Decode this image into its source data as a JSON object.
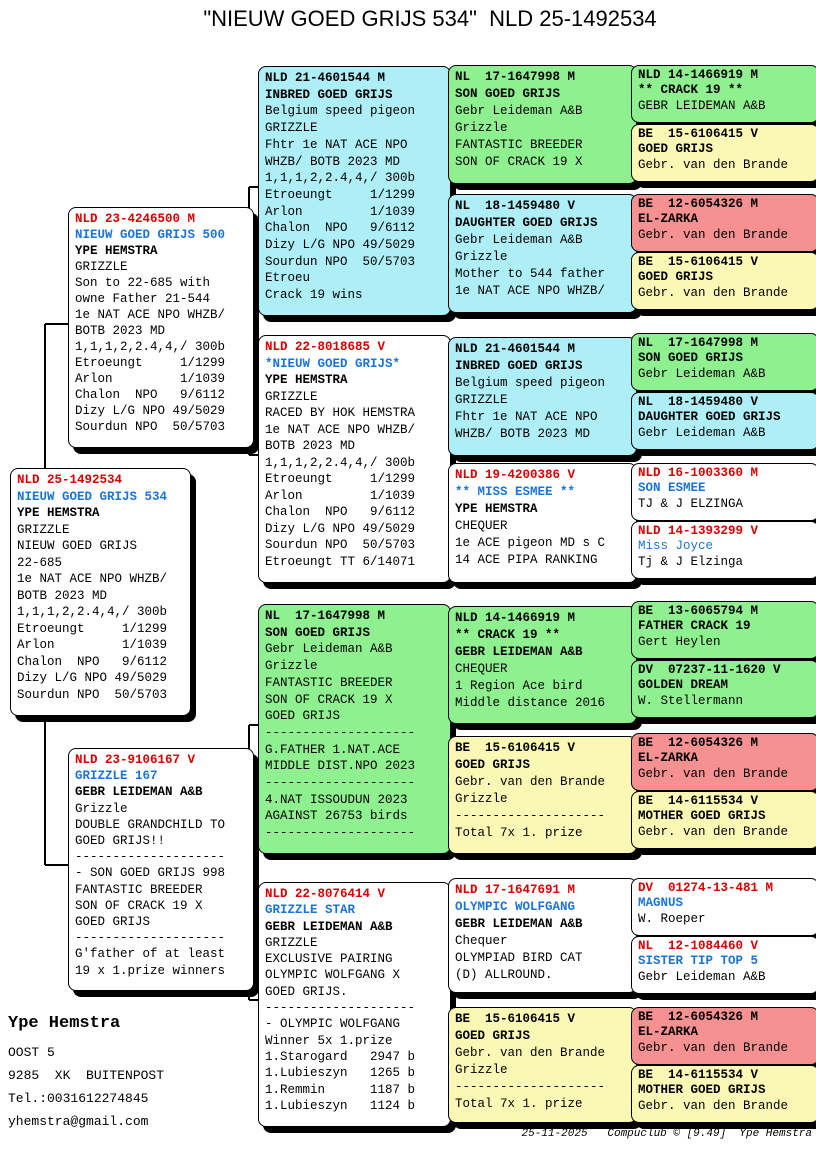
{
  "title": "\"NIEUW GOED GRIJS 534\"  NLD 25-1492534",
  "colors": {
    "text_red": "#d80000",
    "text_blue": "#1b74d8",
    "box_cyan": "#aeeef6",
    "box_green": "#8ff08f",
    "box_yellow": "#fbf8b6",
    "box_red": "#f69191"
  },
  "contact": {
    "name": "Ype Hemstra",
    "address_line1": "OOST 5",
    "address_line2": "9285  XK  BUITENPOST",
    "phone": "Tel.:0031612274845",
    "email": "yhemstra@gmail.com"
  },
  "footer": {
    "text": "25-11-2025   Compuclub © [9.49]  Ype Hemstra"
  },
  "pedigree": {
    "subject": {
      "lines": [
        {
          "t": "NLD 25-1492534",
          "s": "r"
        },
        {
          "t": "NIEUW GOED GRIJS 534",
          "s": "b"
        },
        {
          "t": "YPE HEMSTRA",
          "s": "k"
        },
        {
          "t": "GRIZZLE",
          "s": "p"
        },
        {
          "t": "NIEUW GOED GRIJS",
          "s": "p"
        },
        {
          "t": "22-685",
          "s": "p"
        },
        {
          "t": "1e NAT ACE NPO WHZB/",
          "s": "p"
        },
        {
          "t": "BOTB 2023 MD",
          "s": "p"
        },
        {
          "t": "1,1,1,2,2.4,4,/ 300b",
          "s": "p"
        },
        {
          "t": "Etroeungt     1/1299",
          "s": "p"
        },
        {
          "t": "Arlon         1/1039",
          "s": "p"
        },
        {
          "t": "Chalon  NPO   9/6112",
          "s": "p"
        },
        {
          "t": "Dizy L/G NPO 49/5029",
          "s": "p"
        },
        {
          "t": "Sourdun NPO  50/5703",
          "s": "p"
        }
      ]
    },
    "sire": {
      "lines": [
        {
          "t": "NLD 23-4246500 M",
          "s": "r"
        },
        {
          "t": "NIEUW GOED GRIJS 500",
          "s": "b"
        },
        {
          "t": "YPE HEMSTRA",
          "s": "k"
        },
        {
          "t": "GRIZZLE",
          "s": "p"
        },
        {
          "t": "Son to 22-685 with",
          "s": "p"
        },
        {
          "t": "owne Father 21-544",
          "s": "p"
        },
        {
          "t": "1e NAT ACE NPO WHZB/",
          "s": "p"
        },
        {
          "t": "BOTB 2023 MD",
          "s": "p"
        },
        {
          "t": "1,1,1,2,2.4,4,/ 300b",
          "s": "p"
        },
        {
          "t": "Etroeungt     1/1299",
          "s": "p"
        },
        {
          "t": "Arlon         1/1039",
          "s": "p"
        },
        {
          "t": "Chalon  NPO   9/6112",
          "s": "p"
        },
        {
          "t": "Dizy L/G NPO 49/5029",
          "s": "p"
        },
        {
          "t": "Sourdun NPO  50/5703",
          "s": "p"
        }
      ]
    },
    "dam": {
      "lines": [
        {
          "t": "NLD 23-9106167 V",
          "s": "r"
        },
        {
          "t": "GRIZZLE 167",
          "s": "b"
        },
        {
          "t": "GEBR LEIDEMAN A&B",
          "s": "k"
        },
        {
          "t": "Grizzle",
          "s": "p"
        },
        {
          "t": "DOUBLE GRANDCHILD TO",
          "s": "p"
        },
        {
          "t": "GOED GRIJS!!",
          "s": "p"
        },
        {
          "t": "--------------------",
          "s": "p"
        },
        {
          "t": "- SON GOED GRIJS 998",
          "s": "p"
        },
        {
          "t": "FANTASTIC BREEDER",
          "s": "p"
        },
        {
          "t": "SON OF CRACK 19 X",
          "s": "p"
        },
        {
          "t": "GOED GRIJS",
          "s": "p"
        },
        {
          "t": "--------------------",
          "s": "p"
        },
        {
          "t": "G'father of at least",
          "s": "p"
        },
        {
          "t": "19 x 1.prize winners",
          "s": "p"
        }
      ]
    },
    "ff": {
      "lines": [
        {
          "t": "NLD 21-4601544 M",
          "s": "k"
        },
        {
          "t": "INBRED GOED GRIJS",
          "s": "k"
        },
        {
          "t": "Belgium speed pigeon",
          "s": "p"
        },
        {
          "t": "GRIZZLE",
          "s": "p"
        },
        {
          "t": "Fhtr 1e NAT ACE NPO",
          "s": "p"
        },
        {
          "t": "WHZB/ BOTB 2023 MD",
          "s": "p"
        },
        {
          "t": "1,1,1,2,2.4,4,/ 300b",
          "s": "p"
        },
        {
          "t": "Etroeungt     1/1299",
          "s": "p"
        },
        {
          "t": "Arlon         1/1039",
          "s": "p"
        },
        {
          "t": "Chalon  NPO   9/6112",
          "s": "p"
        },
        {
          "t": "Dizy L/G NPO 49/5029",
          "s": "p"
        },
        {
          "t": "Sourdun NPO  50/5703",
          "s": "p"
        },
        {
          "t": "Etroeu",
          "s": "p"
        },
        {
          "t": "Crack 19 wins",
          "s": "p"
        }
      ]
    },
    "fm": {
      "lines": [
        {
          "t": "NLD 22-8018685 V",
          "s": "r"
        },
        {
          "t": "*NIEUW GOED GRIJS*",
          "s": "b"
        },
        {
          "t": "YPE HEMSTRA",
          "s": "k"
        },
        {
          "t": "GRIZZLE",
          "s": "p"
        },
        {
          "t": "RACED BY HOK HEMSTRA",
          "s": "p"
        },
        {
          "t": "1e NAT ACE NPO WHZB/",
          "s": "p"
        },
        {
          "t": "BOTB 2023 MD",
          "s": "p"
        },
        {
          "t": "1,1,1,2,2.4,4,/ 300b",
          "s": "p"
        },
        {
          "t": "Etroeungt     1/1299",
          "s": "p"
        },
        {
          "t": "Arlon         1/1039",
          "s": "p"
        },
        {
          "t": "Chalon  NPO   9/6112",
          "s": "p"
        },
        {
          "t": "Dizy L/G NPO 49/5029",
          "s": "p"
        },
        {
          "t": "Sourdun NPO  50/5703",
          "s": "p"
        },
        {
          "t": "Etroeungt TT 6/14071",
          "s": "p"
        }
      ]
    },
    "mf": {
      "lines": [
        {
          "t": "NL  17-1647998 M",
          "s": "k"
        },
        {
          "t": "SON GOED GRIJS",
          "s": "k"
        },
        {
          "t": "Gebr Leideman A&B",
          "s": "p"
        },
        {
          "t": "Grizzle",
          "s": "p"
        },
        {
          "t": "FANTASTIC BREEDER",
          "s": "p"
        },
        {
          "t": "SON OF CRACK 19 X",
          "s": "p"
        },
        {
          "t": "GOED GRIJS",
          "s": "p"
        },
        {
          "t": "--------------------",
          "s": "p"
        },
        {
          "t": "G.FATHER 1.NAT.ACE",
          "s": "p"
        },
        {
          "t": "MIDDLE DIST.NPO 2023",
          "s": "p"
        },
        {
          "t": "--------------------",
          "s": "p"
        },
        {
          "t": "4.NAT ISSOUDUN 2023",
          "s": "p"
        },
        {
          "t": "AGAINST 26753 birds",
          "s": "p"
        },
        {
          "t": "--------------------",
          "s": "p"
        }
      ]
    },
    "mm": {
      "lines": [
        {
          "t": "NLD 22-8076414 V",
          "s": "r"
        },
        {
          "t": "GRIZZLE STAR",
          "s": "b"
        },
        {
          "t": "GEBR LEIDEMAN A&B",
          "s": "k"
        },
        {
          "t": "GRIZZLE",
          "s": "p"
        },
        {
          "t": "EXCLUSIVE PAIRING",
          "s": "p"
        },
        {
          "t": "OLYMPIC WOLFGANG X",
          "s": "p"
        },
        {
          "t": "GOED GRIJS.",
          "s": "p"
        },
        {
          "t": "--------------------",
          "s": "p"
        },
        {
          "t": "- OLYMPIC WOLFGANG",
          "s": "p"
        },
        {
          "t": "Winner 5x 1.prize",
          "s": "p"
        },
        {
          "t": "1.Starogard   2947 b",
          "s": "p"
        },
        {
          "t": "1.Lubieszyn   1265 b",
          "s": "p"
        },
        {
          "t": "1.Remmin      1187 b",
          "s": "p"
        },
        {
          "t": "1.Lubieszyn   1124 b",
          "s": "p"
        }
      ]
    },
    "fff": {
      "lines": [
        {
          "t": "NL  17-1647998 M",
          "s": "k"
        },
        {
          "t": "SON GOED GRIJS",
          "s": "k"
        },
        {
          "t": "Gebr Leideman A&B",
          "s": "p"
        },
        {
          "t": "Grizzle",
          "s": "p"
        },
        {
          "t": "FANTASTIC BREEDER",
          "s": "p"
        },
        {
          "t": "SON OF CRACK 19 X",
          "s": "p"
        }
      ]
    },
    "ffm": {
      "lines": [
        {
          "t": "NL  18-1459480 V",
          "s": "k"
        },
        {
          "t": "DAUGHTER GOED GRIJS",
          "s": "k"
        },
        {
          "t": "Gebr Leideman A&B",
          "s": "p"
        },
        {
          "t": "Grizzle",
          "s": "p"
        },
        {
          "t": "Mother to 544 father",
          "s": "p"
        },
        {
          "t": "1e NAT ACE NPO WHZB/",
          "s": "p"
        }
      ]
    },
    "fmf": {
      "lines": [
        {
          "t": "NLD 21-4601544 M",
          "s": "k"
        },
        {
          "t": "INBRED GOED GRIJS",
          "s": "k"
        },
        {
          "t": "Belgium speed pigeon",
          "s": "p"
        },
        {
          "t": "GRIZZLE",
          "s": "p"
        },
        {
          "t": "Fhtr 1e NAT ACE NPO",
          "s": "p"
        },
        {
          "t": "WHZB/ BOTB 2023 MD",
          "s": "p"
        }
      ]
    },
    "fmm": {
      "lines": [
        {
          "t": "NLD 19-4200386 V",
          "s": "r"
        },
        {
          "t": "** MISS ESMEE **",
          "s": "b"
        },
        {
          "t": "YPE HEMSTRA",
          "s": "k"
        },
        {
          "t": "CHEQUER",
          "s": "p"
        },
        {
          "t": "1e ACE pigeon MD s C",
          "s": "p"
        },
        {
          "t": "14 ACE PIPA RANKING",
          "s": "p"
        }
      ]
    },
    "mff": {
      "lines": [
        {
          "t": "NLD 14-1466919 M",
          "s": "k"
        },
        {
          "t": "** CRACK 19 **",
          "s": "k"
        },
        {
          "t": "GEBR LEIDEMAN A&B",
          "s": "k"
        },
        {
          "t": "CHEQUER",
          "s": "p"
        },
        {
          "t": "1 Region Ace bird",
          "s": "p"
        },
        {
          "t": "Middle distance 2016",
          "s": "p"
        }
      ]
    },
    "mfm": {
      "lines": [
        {
          "t": "BE  15-6106415 V",
          "s": "k"
        },
        {
          "t": "GOED GRIJS",
          "s": "k"
        },
        {
          "t": "Gebr. van den Brande",
          "s": "p"
        },
        {
          "t": "Grizzle",
          "s": "p"
        },
        {
          "t": "--------------------",
          "s": "p"
        },
        {
          "t": "Total 7x 1. prize",
          "s": "p"
        }
      ]
    },
    "mmf": {
      "lines": [
        {
          "t": "NLD 17-1647691 M",
          "s": "r"
        },
        {
          "t": "OLYMPIC WOLFGANG",
          "s": "b"
        },
        {
          "t": "GEBR LEIDEMAN A&B",
          "s": "k"
        },
        {
          "t": "Chequer",
          "s": "p"
        },
        {
          "t": "OLYMPIAD BIRD CAT",
          "s": "p"
        },
        {
          "t": "(D) ALLROUND.",
          "s": "p"
        }
      ]
    },
    "mmm": {
      "lines": [
        {
          "t": "BE  15-6106415 V",
          "s": "k"
        },
        {
          "t": "GOED GRIJS",
          "s": "k"
        },
        {
          "t": "Gebr. van den Brande",
          "s": "p"
        },
        {
          "t": "Grizzle",
          "s": "p"
        },
        {
          "t": "--------------------",
          "s": "p"
        },
        {
          "t": "Total 7x 1. prize",
          "s": "p"
        }
      ]
    },
    "ffff": {
      "lines": [
        {
          "t": "NLD 14-1466919 M",
          "s": "k"
        },
        {
          "t": "** CRACK 19 **",
          "s": "k"
        },
        {
          "t": "GEBR LEIDEMAN A&B",
          "s": "p"
        }
      ]
    },
    "fffm": {
      "lines": [
        {
          "t": "BE  15-6106415 V",
          "s": "k"
        },
        {
          "t": "GOED GRIJS",
          "s": "k"
        },
        {
          "t": "Gebr. van den Brande",
          "s": "p"
        }
      ]
    },
    "ffmf": {
      "lines": [
        {
          "t": "BE  12-6054326 M",
          "s": "k"
        },
        {
          "t": "EL-ZARKA",
          "s": "k"
        },
        {
          "t": "Gebr. van den Brande",
          "s": "p"
        }
      ]
    },
    "ffmm": {
      "lines": [
        {
          "t": "BE  15-6106415 V",
          "s": "k"
        },
        {
          "t": "GOED GRIJS",
          "s": "k"
        },
        {
          "t": "Gebr. van den Brande",
          "s": "p"
        }
      ]
    },
    "fmff": {
      "lines": [
        {
          "t": "NL  17-1647998 M",
          "s": "k"
        },
        {
          "t": "SON GOED GRIJS",
          "s": "k"
        },
        {
          "t": "Gebr Leideman A&B",
          "s": "p"
        }
      ]
    },
    "fmfm": {
      "lines": [
        {
          "t": "NL  18-1459480 V",
          "s": "k"
        },
        {
          "t": "DAUGHTER GOED GRIJS",
          "s": "k"
        },
        {
          "t": "Gebr Leideman A&B",
          "s": "p"
        }
      ]
    },
    "fmmf": {
      "lines": [
        {
          "t": "NLD 16-1003360 M",
          "s": "r"
        },
        {
          "t": "SON ESMEE",
          "s": "b"
        },
        {
          "t": "TJ & J ELZINGA",
          "s": "p"
        }
      ]
    },
    "fmmm": {
      "lines": [
        {
          "t": "NLD 14-1393299 V",
          "s": "r"
        },
        {
          "t": "Miss Joyce",
          "s": "bl"
        },
        {
          "t": "Tj & J Elzinga",
          "s": "p"
        }
      ]
    },
    "mfff": {
      "lines": [
        {
          "t": "BE  13-6065794 M",
          "s": "k"
        },
        {
          "t": "FATHER CRACK 19",
          "s": "k"
        },
        {
          "t": "Gert Heylen",
          "s": "p"
        }
      ]
    },
    "mffm": {
      "lines": [
        {
          "t": "DV  07237-11-1620 V",
          "s": "k"
        },
        {
          "t": "GOLDEN DREAM",
          "s": "k"
        },
        {
          "t": "W. Stellermann",
          "s": "p"
        }
      ]
    },
    "mfmf": {
      "lines": [
        {
          "t": "BE  12-6054326 M",
          "s": "k"
        },
        {
          "t": "EL-ZARKA",
          "s": "k"
        },
        {
          "t": "Gebr. van den Brande",
          "s": "p"
        }
      ]
    },
    "mfmm": {
      "lines": [
        {
          "t": "BE  14-6115534 V",
          "s": "k"
        },
        {
          "t": "MOTHER GOED GRIJS",
          "s": "k"
        },
        {
          "t": "Gebr. van den Brande",
          "s": "p"
        }
      ]
    },
    "mmff": {
      "lines": [
        {
          "t": "DV  01274-13-481 M",
          "s": "r"
        },
        {
          "t": "MAGNUS",
          "s": "b"
        },
        {
          "t": "W. Roeper",
          "s": "p"
        }
      ]
    },
    "mmfm": {
      "lines": [
        {
          "t": "NL  12-1084460 V",
          "s": "r"
        },
        {
          "t": "SISTER TIP TOP 5",
          "s": "b"
        },
        {
          "t": "Gebr Leideman A&B",
          "s": "p"
        }
      ]
    },
    "mmmf": {
      "lines": [
        {
          "t": "BE  12-6054326 M",
          "s": "k"
        },
        {
          "t": "EL-ZARKA",
          "s": "k"
        },
        {
          "t": "Gebr. van den Brande",
          "s": "p"
        }
      ]
    },
    "mmmm": {
      "lines": [
        {
          "t": "BE  14-6115534 V",
          "s": "k"
        },
        {
          "t": "MOTHER GOED GRIJS",
          "s": "k"
        },
        {
          "t": "Gebr. van den Brande",
          "s": "p"
        }
      ]
    }
  }
}
